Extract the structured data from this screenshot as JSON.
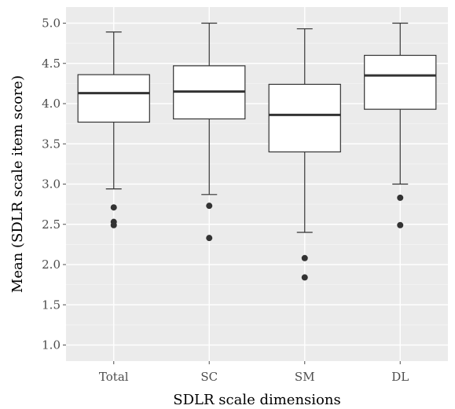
{
  "chart_data": {
    "type": "boxplot",
    "title": "",
    "xlabel": "SDLR scale dimensions",
    "ylabel": "Mean (SDLR scale item score)",
    "ylim": [
      0.8,
      5.2
    ],
    "yticks": [
      1.0,
      1.5,
      2.0,
      2.5,
      3.0,
      3.5,
      4.0,
      4.5,
      5.0
    ],
    "ytick_labels": [
      "1.0",
      "1.5",
      "2.0",
      "2.5",
      "3.0",
      "3.5",
      "4.0",
      "4.5",
      "5.0"
    ],
    "categories": [
      "Total",
      "SC",
      "SM",
      "DL"
    ],
    "boxes": [
      {
        "category": "Total",
        "whisker_low": 2.94,
        "q1": 3.77,
        "median": 4.13,
        "q3": 4.36,
        "whisker_high": 4.89,
        "outliers": [
          2.71,
          2.53,
          2.49
        ]
      },
      {
        "category": "SC",
        "whisker_low": 2.87,
        "q1": 3.81,
        "median": 4.15,
        "q3": 4.47,
        "whisker_high": 5.0,
        "outliers": [
          2.73,
          2.33
        ]
      },
      {
        "category": "SM",
        "whisker_low": 2.4,
        "q1": 3.4,
        "median": 3.86,
        "q3": 4.24,
        "whisker_high": 4.93,
        "outliers": [
          2.08,
          1.84
        ]
      },
      {
        "category": "DL",
        "whisker_low": 3.0,
        "q1": 3.93,
        "median": 4.35,
        "q3": 4.6,
        "whisker_high": 5.0,
        "outliers": [
          2.83,
          2.49
        ]
      }
    ],
    "grid": true,
    "legend": "none",
    "colors": {
      "panel": "#ebebeb",
      "grid_major": "#ffffff",
      "grid_minor": "#f5f5f5",
      "box_fill": "#ffffff",
      "line": "#333333",
      "tick": "#4d4d4d"
    }
  }
}
